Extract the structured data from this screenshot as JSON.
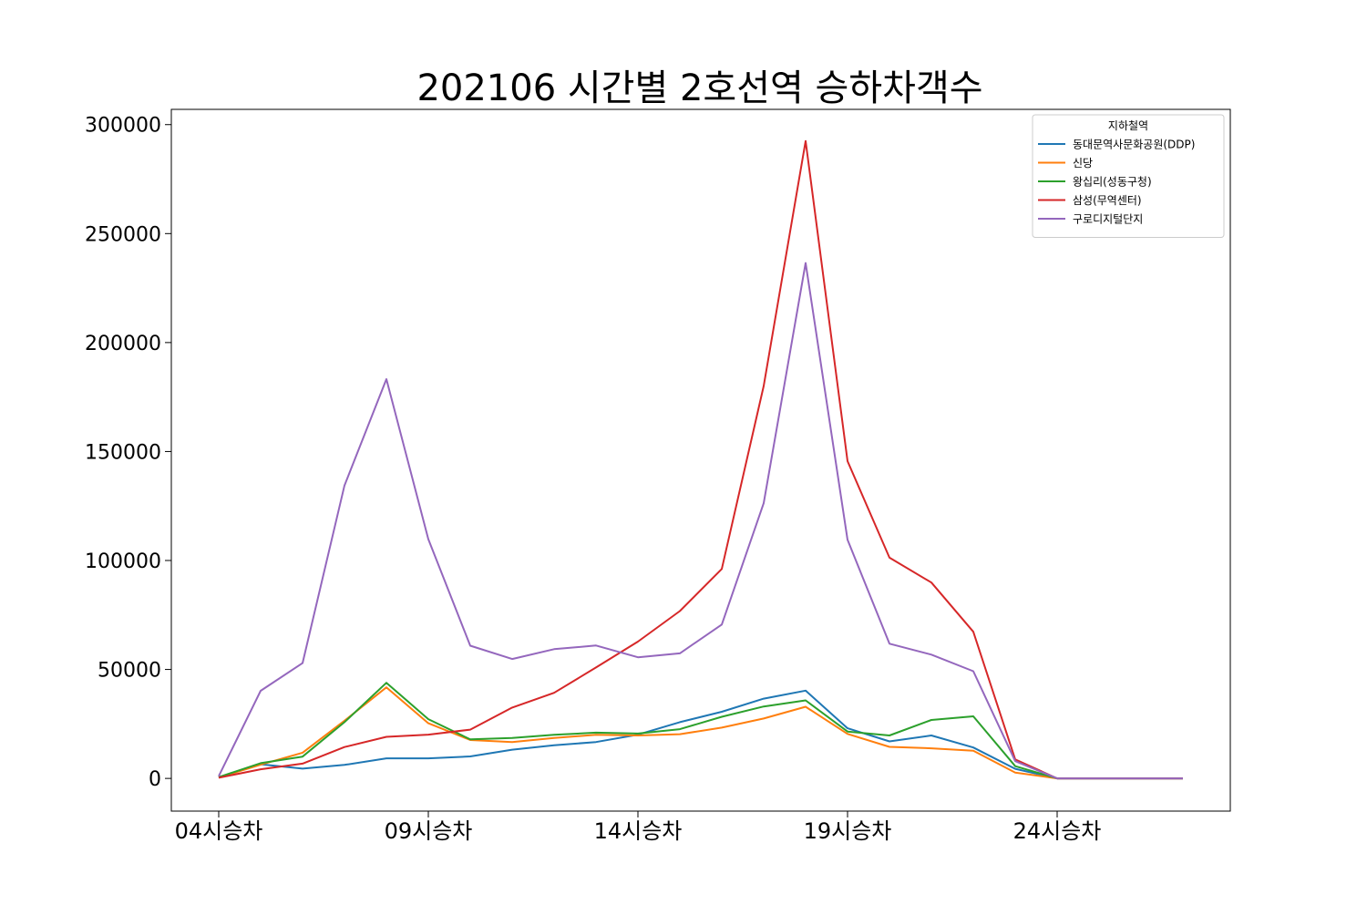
{
  "chart_data": {
    "type": "line",
    "title": "202106 시간별 2호선역 승하차객수",
    "xlabel": "",
    "ylabel": "",
    "x_tick_labels": [
      "04시승차",
      "09시승차",
      "14시승차",
      "19시승차",
      "24시승차"
    ],
    "x_tick_positions": [
      0,
      5,
      10,
      15,
      20
    ],
    "x_count": 24,
    "ylim": [
      -15000,
      307000
    ],
    "y_ticks": [
      0,
      50000,
      100000,
      150000,
      200000,
      250000,
      300000
    ],
    "grid": false,
    "legend_placement": "upper right",
    "legend_title": "지하철역",
    "series": [
      {
        "name": "동대문역사문화공원(DDP)",
        "color": "#1f77b4",
        "values": [
          500,
          6500,
          4500,
          6200,
          9200,
          9200,
          10100,
          13200,
          15200,
          16700,
          20100,
          25800,
          30600,
          36600,
          40300,
          23000,
          17000,
          19700,
          14200,
          4400,
          0,
          0,
          0,
          0
        ]
      },
      {
        "name": "신당",
        "color": "#ff7f0e",
        "values": [
          400,
          6300,
          11800,
          26500,
          41800,
          25300,
          17600,
          16700,
          18600,
          20000,
          19700,
          20300,
          23300,
          27500,
          32900,
          20400,
          14500,
          13800,
          12700,
          2700,
          0,
          0,
          0,
          0
        ]
      },
      {
        "name": "왕십리(성동구청)",
        "color": "#2ca02c",
        "values": [
          600,
          7000,
          10000,
          25800,
          43900,
          27200,
          17900,
          18600,
          20000,
          21000,
          20600,
          22600,
          28300,
          33000,
          35800,
          21500,
          19700,
          26800,
          28500,
          5600,
          0,
          0,
          0,
          0
        ]
      },
      {
        "name": "삼성(무역센터)",
        "color": "#d62728",
        "values": [
          300,
          4200,
          6800,
          14400,
          19100,
          20100,
          22400,
          32500,
          39300,
          50900,
          62800,
          76800,
          96100,
          180100,
          292500,
          145600,
          101300,
          89900,
          67300,
          8700,
          0,
          0,
          0,
          0
        ]
      },
      {
        "name": "구로디지털단지",
        "color": "#9467bd",
        "values": [
          1000,
          40200,
          52900,
          134400,
          183200,
          109800,
          60900,
          54800,
          59300,
          61000,
          55600,
          57400,
          70600,
          126300,
          236500,
          109500,
          61800,
          56800,
          49200,
          7900,
          0,
          0,
          0,
          0
        ]
      }
    ]
  }
}
